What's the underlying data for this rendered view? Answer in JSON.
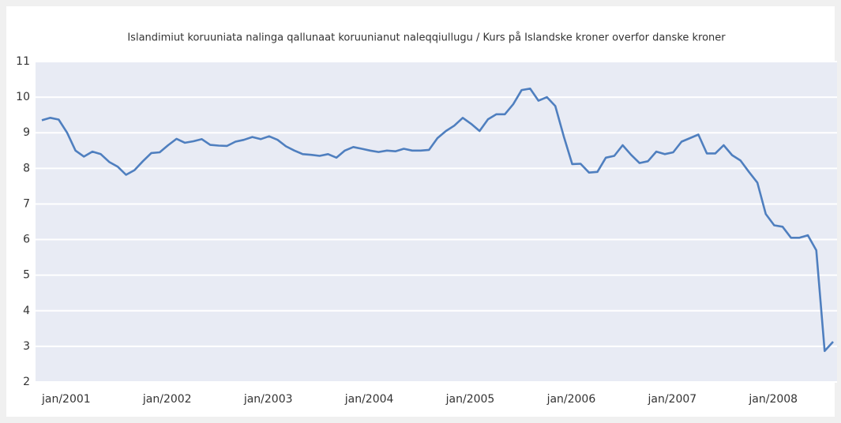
{
  "chart_data": {
    "type": "line",
    "title": "Islandimiut koruuniata nalinga qallunaat koruunianut naleqqiullugu / Kurs på Islandske kroner overfor danske kroner",
    "categories": [
      "jan/2001",
      null,
      null,
      null,
      null,
      null,
      null,
      null,
      null,
      null,
      null,
      null,
      "jan/2002",
      null,
      null,
      null,
      null,
      null,
      null,
      null,
      null,
      null,
      null,
      null,
      "jan/2003",
      null,
      null,
      null,
      null,
      null,
      null,
      null,
      null,
      null,
      null,
      null,
      "jan/2004",
      null,
      null,
      null,
      null,
      null,
      null,
      null,
      null,
      null,
      null,
      null,
      "jan/2005",
      null,
      null,
      null,
      null,
      null,
      null,
      null,
      null,
      null,
      null,
      null,
      "jan/2006",
      null,
      null,
      null,
      null,
      null,
      null,
      null,
      null,
      null,
      null,
      null,
      "jan/2007",
      null,
      null,
      null,
      null,
      null,
      null,
      null,
      null,
      null,
      null,
      null,
      "jan/2008",
      null,
      null,
      null,
      null,
      null,
      null,
      null,
      null,
      null,
      null
    ],
    "series": [
      {
        "color": "#4f7fbf",
        "values": [
          9.35,
          9.42,
          9.37,
          9.0,
          8.5,
          8.33,
          8.47,
          8.4,
          8.18,
          8.05,
          7.82,
          7.95,
          8.2,
          8.43,
          8.45,
          8.65,
          8.83,
          8.72,
          8.76,
          8.82,
          8.66,
          8.64,
          8.63,
          8.75,
          8.8,
          8.88,
          8.82,
          8.9,
          8.8,
          8.62,
          8.5,
          8.4,
          8.38,
          8.35,
          8.4,
          8.3,
          8.5,
          8.6,
          8.55,
          8.5,
          8.46,
          8.5,
          8.48,
          8.55,
          8.5,
          8.5,
          8.52,
          8.85,
          9.05,
          9.2,
          9.42,
          9.25,
          9.05,
          9.38,
          9.52,
          9.52,
          9.8,
          10.2,
          10.24,
          9.9,
          10.0,
          9.75,
          8.9,
          8.12,
          8.13,
          7.88,
          7.9,
          8.3,
          8.35,
          8.65,
          8.38,
          8.15,
          8.2,
          8.47,
          8.4,
          8.45,
          8.75,
          8.85,
          8.95,
          8.42,
          8.42,
          8.65,
          8.37,
          8.22,
          7.9,
          7.6,
          6.72,
          6.4,
          6.36,
          6.05,
          6.05,
          6.12,
          5.7,
          2.87,
          3.13
        ]
      }
    ],
    "ylim": [
      2,
      11
    ],
    "yticks": [
      2,
      3,
      4,
      5,
      6,
      7,
      8,
      9,
      10,
      11
    ],
    "grid": true
  }
}
